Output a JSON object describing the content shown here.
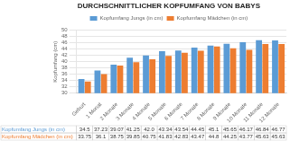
{
  "chart_data": {
    "type": "bar",
    "title": "DURCHSCHNITTLICHER KOPFUMFANG VON BABYS",
    "ylabel": "Kopfumfang (cm)",
    "categories": [
      "Geburt",
      "1 Monat",
      "2 Monate",
      "3 Monate",
      "4 Monate",
      "5 Monate",
      "6 Monate",
      "7 Monate",
      "8 Monate",
      "9 Monate",
      "10 Monate",
      "11 Monate",
      "12 Monate"
    ],
    "series": [
      {
        "name": "Kopfumfang Jungs (in cm)",
        "color": "#5b9bd5",
        "values": [
          34.5,
          37.23,
          39.07,
          41.25,
          42.0,
          43.34,
          43.54,
          44.45,
          45.1,
          45.65,
          46.17,
          46.84,
          46.77
        ],
        "value_labels": [
          "34.5",
          "37.23",
          "39.07",
          "41.25",
          "42.0",
          "43.34",
          "43.54",
          "44.45",
          "45.1",
          "45.65",
          "46.17",
          "46.84",
          "46.77"
        ]
      },
      {
        "name": "Kopfumfang Mädchen (in cm)",
        "color": "#ed7d31",
        "values": [
          33.75,
          36.1,
          38.75,
          39.85,
          40.75,
          41.83,
          42.83,
          43.47,
          44.8,
          44.25,
          43.77,
          45.63,
          45.63
        ],
        "value_labels": [
          "33.75",
          "36.1",
          "38.75",
          "39.85",
          "40.75",
          "41.83",
          "42.83",
          "43.47",
          "44.8",
          "44.25",
          "43.77",
          "45.63",
          "45.63"
        ]
      }
    ],
    "ylim": [
      30,
      50
    ],
    "yticks": [
      30,
      32,
      34,
      36,
      38,
      40,
      42,
      44,
      46,
      48,
      50
    ],
    "grid": true,
    "legend": "top"
  }
}
